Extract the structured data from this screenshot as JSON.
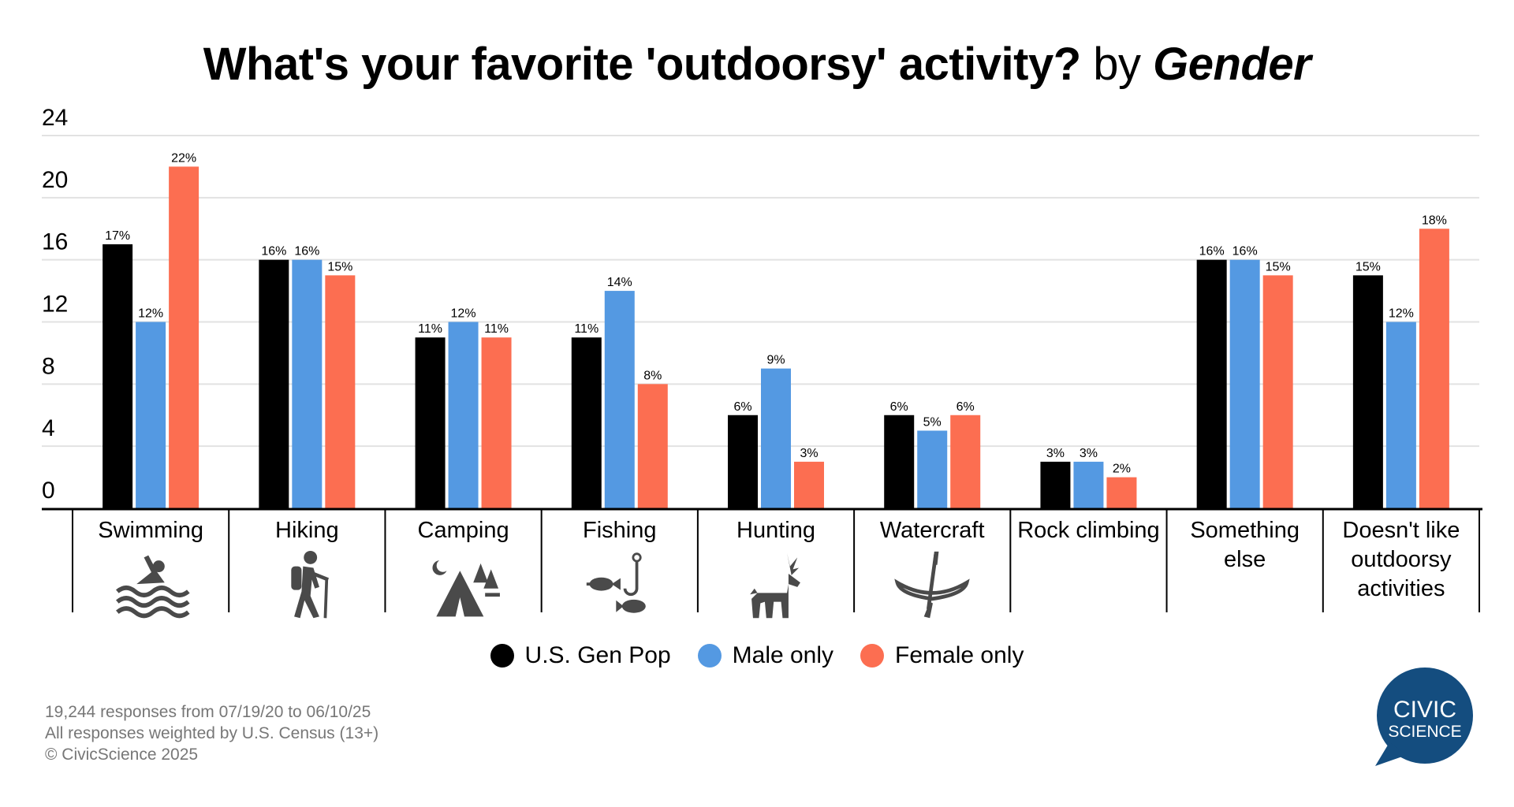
{
  "title": {
    "main": "What's your favorite 'outdoorsy' activity?",
    "by": "by",
    "group": "Gender"
  },
  "chart_data": {
    "type": "bar",
    "categories": [
      "Swimming",
      "Hiking",
      "Camping",
      "Fishing",
      "Hunting",
      "Watercraft",
      "Rock climbing",
      "Something else",
      "Doesn't like outdoorsy activities"
    ],
    "category_icons": [
      "swimmer-icon",
      "hiker-icon",
      "camping-tent-icon",
      "fishing-icon",
      "deer-icon",
      "canoe-icon",
      "",
      "",
      ""
    ],
    "series": [
      {
        "name": "U.S. Gen Pop",
        "color": "#000000",
        "values": [
          17,
          16,
          11,
          11,
          6,
          6,
          3,
          16,
          15
        ]
      },
      {
        "name": "Male only",
        "color": "#5499E2",
        "values": [
          12,
          16,
          12,
          14,
          9,
          5,
          3,
          16,
          12
        ]
      },
      {
        "name": "Female only",
        "color": "#FC6E51",
        "values": [
          22,
          15,
          11,
          8,
          3,
          6,
          2,
          15,
          18
        ]
      }
    ],
    "value_suffix": "%",
    "yticks": [
      0,
      4,
      8,
      12,
      16,
      20,
      24
    ],
    "ylim": [
      0,
      24
    ],
    "grid": true,
    "legend": "bottom-center"
  },
  "footer": {
    "line1": "19,244 responses from 07/19/20 to 06/10/25",
    "line2": "All responses weighted by U.S. Census (13+)",
    "line3": "© CivicScience 2025"
  },
  "logo": {
    "line1": "CIVIC",
    "line2": "SCIENCE",
    "color": "#144D7F"
  }
}
